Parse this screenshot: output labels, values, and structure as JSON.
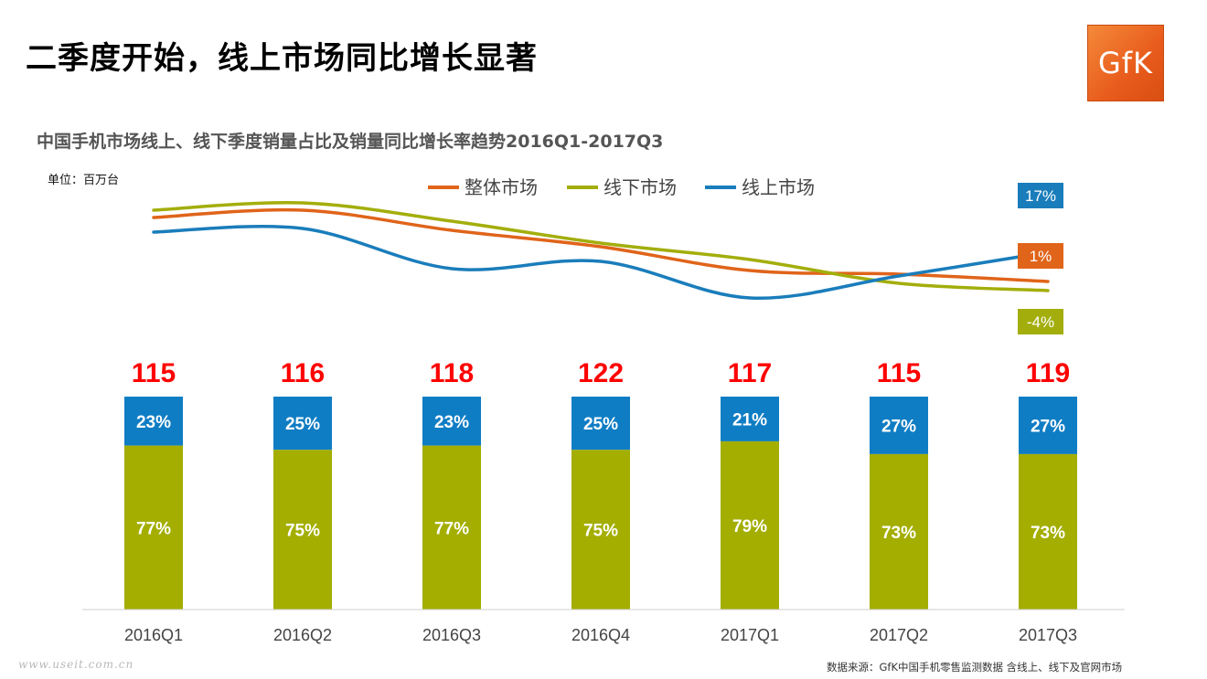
{
  "page": {
    "title": "二季度开始，线上市场同比增长显著",
    "logo_text": "GfK",
    "unit": "单位：百万台",
    "source": "数据来源：GfK中国手机零售监测数据 含线上、线下及官网市场",
    "watermark": "www.useit.com.cn"
  },
  "colors": {
    "overall": "#e0641a",
    "offline": "#a3ae0c",
    "online": "#1a7dbb",
    "total_label": "#ff0000",
    "bar_offline": "#a3ae00",
    "bar_online": "#0f7dc4"
  },
  "chart_data": {
    "type": "bar",
    "title": "中国手机市场线上、线下季度销量占比及销量同比增长率趋势2016Q1-2017Q3",
    "categories": [
      "2016Q1",
      "2016Q2",
      "2016Q3",
      "2016Q4",
      "2017Q1",
      "2017Q2",
      "2017Q3"
    ],
    "totals": [
      "115",
      "116",
      "118",
      "122",
      "117",
      "115",
      "119"
    ],
    "stacked_share": [
      {
        "name": "offline",
        "values": [
          77,
          75,
          77,
          75,
          79,
          73,
          73
        ],
        "labels": [
          "77%",
          "75%",
          "77%",
          "75%",
          "79%",
          "73%",
          "73%"
        ]
      },
      {
        "name": "online",
        "values": [
          23,
          25,
          23,
          25,
          21,
          27,
          27
        ],
        "labels": [
          "23%",
          "25%",
          "23%",
          "25%",
          "21%",
          "27%",
          "27%"
        ]
      }
    ],
    "growth_lines": {
      "legend": [
        "整体市场",
        "线下市场",
        "线上市场"
      ],
      "end_labels": [
        "1%",
        "-4%",
        "17%"
      ],
      "series": [
        {
          "key": "overall",
          "values": [
            36,
            40,
            29,
            20,
            7,
            5,
            1
          ]
        },
        {
          "key": "offline",
          "values": [
            40,
            44,
            34,
            22,
            13,
            0,
            -4
          ]
        },
        {
          "key": "online",
          "values": [
            28,
            30,
            8,
            12,
            -8,
            4,
            17
          ]
        }
      ]
    }
  }
}
